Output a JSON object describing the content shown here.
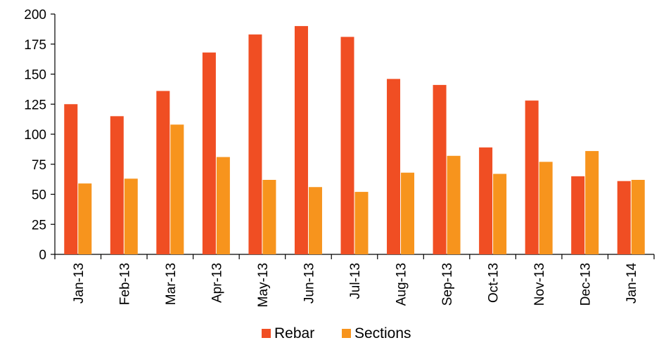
{
  "chart_data": {
    "type": "bar",
    "categories": [
      "Jan-13",
      "Feb-13",
      "Mar-13",
      "Apr-13",
      "May-13",
      "Jun-13",
      "Jul-13",
      "Aug-13",
      "Sep-13",
      "Oct-13",
      "Nov-13",
      "Dec-13",
      "Jan-14"
    ],
    "series": [
      {
        "name": "Rebar",
        "color": "#F04E23",
        "values": [
          125,
          115,
          136,
          168,
          183,
          190,
          181,
          146,
          141,
          89,
          128,
          65,
          61
        ]
      },
      {
        "name": "Sections",
        "color": "#F7941D",
        "values": [
          59,
          63,
          108,
          81,
          62,
          56,
          52,
          68,
          82,
          67,
          77,
          86,
          62
        ]
      }
    ],
    "title": "",
    "xlabel": "",
    "ylabel": "",
    "ylim": [
      0,
      200
    ],
    "yticks": [
      0,
      25,
      50,
      75,
      100,
      125,
      150,
      175,
      200
    ],
    "grid": false,
    "legend_position": "bottom-center"
  }
}
